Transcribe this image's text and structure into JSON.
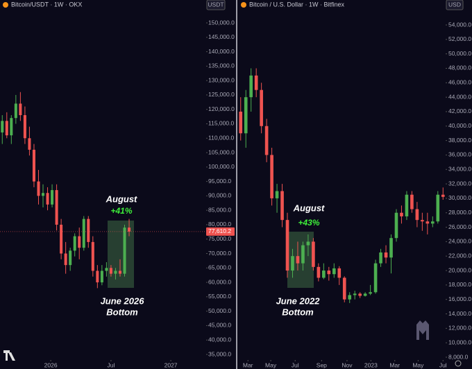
{
  "chart_data": [
    {
      "type": "candlestick",
      "title": "Bitcoin/USDT · 1W · OKX",
      "currency": "USDT",
      "up_color": "#4caf50",
      "down_color": "#ef5350",
      "open": [
        112000,
        116000,
        111000,
        117000,
        122000,
        118000,
        110000,
        106000,
        95000,
        90000,
        91000,
        87000,
        92000,
        80000,
        70000,
        66000,
        71000,
        76000,
        72000,
        82000,
        74000,
        64000,
        60000,
        64000,
        65000,
        63000,
        64000,
        63000,
        79000
      ],
      "high": [
        118000,
        119000,
        118000,
        125000,
        126000,
        121000,
        114000,
        108000,
        99000,
        94000,
        93000,
        94000,
        94000,
        82000,
        74000,
        72000,
        77000,
        79000,
        83000,
        83000,
        76000,
        66000,
        66000,
        67000,
        66000,
        65000,
        68000,
        80000,
        82000
      ],
      "low": [
        108000,
        110000,
        108000,
        115000,
        116000,
        108000,
        104000,
        93000,
        87000,
        86000,
        85000,
        86000,
        78000,
        68000,
        63000,
        64000,
        69000,
        68000,
        71000,
        72000,
        62000,
        58000,
        59000,
        62000,
        62000,
        61000,
        62000,
        62000,
        76000
      ],
      "close": [
        116000,
        111000,
        117000,
        122000,
        118000,
        110000,
        106000,
        95000,
        90000,
        91000,
        87000,
        92000,
        80000,
        70000,
        66000,
        71000,
        76000,
        72000,
        82000,
        74000,
        64000,
        60000,
        64000,
        65000,
        63000,
        64000,
        63000,
        79000,
        77610.2
      ],
      "last_price": {
        "value": 77610.2,
        "label": "77,610.2"
      },
      "xlim": [
        -0.5,
        45
      ],
      "xticks": [
        {
          "value": 10.7,
          "label": "2026"
        },
        {
          "value": 24,
          "label": "Jul"
        },
        {
          "value": 37.2,
          "label": "2027"
        }
      ],
      "ylim": [
        35000,
        150000
      ],
      "yticks": [
        {
          "value": 35000,
          "label": "35,000.0"
        },
        {
          "value": 40000,
          "label": "40,000.0"
        },
        {
          "value": 45000,
          "label": "45,000.0"
        },
        {
          "value": 50000,
          "label": "50,000.0"
        },
        {
          "value": 55000,
          "label": "55,000.0"
        },
        {
          "value": 60000,
          "label": "60,000.0"
        },
        {
          "value": 65000,
          "label": "65,000.0"
        },
        {
          "value": 70000,
          "label": "70,000.0"
        },
        {
          "value": 75000,
          "label": "75,000.0"
        },
        {
          "value": 80000,
          "label": "80,000.0"
        },
        {
          "value": 85000,
          "label": "85,000.0"
        },
        {
          "value": 90000,
          "label": "90,000.0"
        },
        {
          "value": 95000,
          "label": "95,000.0"
        },
        {
          "value": 100000,
          "label": "100,000.0"
        },
        {
          "value": 105000,
          "label": "105,000.0"
        },
        {
          "value": 110000,
          "label": "110,000.0"
        },
        {
          "value": 115000,
          "label": "115,000.0"
        },
        {
          "value": 120000,
          "label": "120,000.0"
        },
        {
          "value": 125000,
          "label": "125,000.0"
        },
        {
          "value": 130000,
          "label": "130,000.0"
        },
        {
          "value": 135000,
          "label": "135,000.0"
        },
        {
          "value": 140000,
          "label": "140,000.0"
        },
        {
          "value": 145000,
          "label": "145,000.0"
        },
        {
          "value": 150000,
          "label": "150,000.0"
        }
      ],
      "annotations": [
        "August",
        "+41%",
        "June 2026",
        "Bottom"
      ]
    },
    {
      "type": "candlestick",
      "title": "Bitcoin / U.S. Dollar · 1W · Bitfinex",
      "currency": "USD",
      "up_color": "#4caf50",
      "down_color": "#ef5350",
      "open": [
        42000,
        39000,
        44000,
        47000,
        45000,
        40000,
        36000,
        30000,
        31000,
        27000,
        20000,
        22000,
        21000,
        23500,
        24000,
        20500,
        19000,
        20000,
        19500,
        20300,
        19000,
        16000,
        16600,
        16800,
        16500,
        16800,
        17000,
        21000,
        22500,
        21800,
        24500,
        28000,
        27500,
        30500,
        28500,
        27000,
        26800,
        26500,
        26800,
        30500
      ],
      "high": [
        44000,
        45000,
        48000,
        48000,
        46000,
        41000,
        37000,
        32000,
        32000,
        28000,
        23000,
        24000,
        24000,
        25000,
        24500,
        21000,
        21000,
        20500,
        21000,
        20600,
        19200,
        17000,
        17200,
        17000,
        17000,
        18000,
        21500,
        23000,
        23500,
        25000,
        28500,
        29000,
        31000,
        31000,
        29500,
        28000,
        28000,
        27500,
        31000,
        31500
      ],
      "low": [
        38000,
        37000,
        42000,
        44000,
        39000,
        35000,
        29000,
        28000,
        26000,
        19000,
        19000,
        20000,
        20000,
        22000,
        20000,
        18500,
        18800,
        18600,
        19000,
        18000,
        15600,
        15500,
        16000,
        16200,
        16400,
        16600,
        16800,
        20500,
        21000,
        19600,
        24000,
        26500,
        27000,
        28000,
        26000,
        25500,
        25000,
        26000,
        26500,
        29800
      ],
      "close": [
        39000,
        44000,
        47000,
        45000,
        40000,
        36000,
        30000,
        31000,
        27000,
        20000,
        22000,
        21000,
        23500,
        24000,
        20500,
        19000,
        20000,
        19500,
        20300,
        19000,
        16000,
        16600,
        16800,
        16500,
        16800,
        17000,
        21000,
        22500,
        21800,
        24500,
        28000,
        27500,
        30500,
        28500,
        27000,
        26800,
        26500,
        26800,
        30500,
        30200
      ],
      "xlim": [
        -0.5,
        39.5
      ],
      "xticks": [
        {
          "value": 1.4,
          "label": "Mar"
        },
        {
          "value": 5.8,
          "label": "May"
        },
        {
          "value": 10.5,
          "label": "Jul"
        },
        {
          "value": 15.6,
          "label": "Sep"
        },
        {
          "value": 20.5,
          "label": "Nov"
        },
        {
          "value": 25.1,
          "label": "2023"
        },
        {
          "value": 29.7,
          "label": "Mar"
        },
        {
          "value": 34.2,
          "label": "May"
        },
        {
          "value": 39,
          "label": "Jul"
        }
      ],
      "ylim": [
        8000,
        54000
      ],
      "yticks": [
        {
          "value": 8000,
          "label": "8,000.0"
        },
        {
          "value": 10000,
          "label": "10,000.0"
        },
        {
          "value": 12000,
          "label": "12,000.0"
        },
        {
          "value": 14000,
          "label": "14,000.0"
        },
        {
          "value": 16000,
          "label": "16,000.0"
        },
        {
          "value": 18000,
          "label": "18,000.0"
        },
        {
          "value": 20000,
          "label": "20,000.0"
        },
        {
          "value": 22000,
          "label": "22,000.0"
        },
        {
          "value": 24000,
          "label": "24,000.0"
        },
        {
          "value": 26000,
          "label": "26,000.0"
        },
        {
          "value": 28000,
          "label": "28,000.0"
        },
        {
          "value": 30000,
          "label": "30,000.0"
        },
        {
          "value": 32000,
          "label": "32,000.0"
        },
        {
          "value": 34000,
          "label": "34,000.0"
        },
        {
          "value": 36000,
          "label": "36,000.0"
        },
        {
          "value": 38000,
          "label": "38,000.0"
        },
        {
          "value": 40000,
          "label": "40,000.0"
        },
        {
          "value": 42000,
          "label": "42,000.0"
        },
        {
          "value": 44000,
          "label": "44,000.0"
        },
        {
          "value": 46000,
          "label": "46,000.0"
        },
        {
          "value": 48000,
          "label": "48,000.0"
        },
        {
          "value": 50000,
          "label": "50,000.0"
        },
        {
          "value": 52000,
          "label": "52,000.0"
        },
        {
          "value": 54000,
          "label": "54,000.0"
        }
      ],
      "annotations": [
        "August",
        "+43%",
        "June 2022",
        "Bottom"
      ]
    }
  ]
}
